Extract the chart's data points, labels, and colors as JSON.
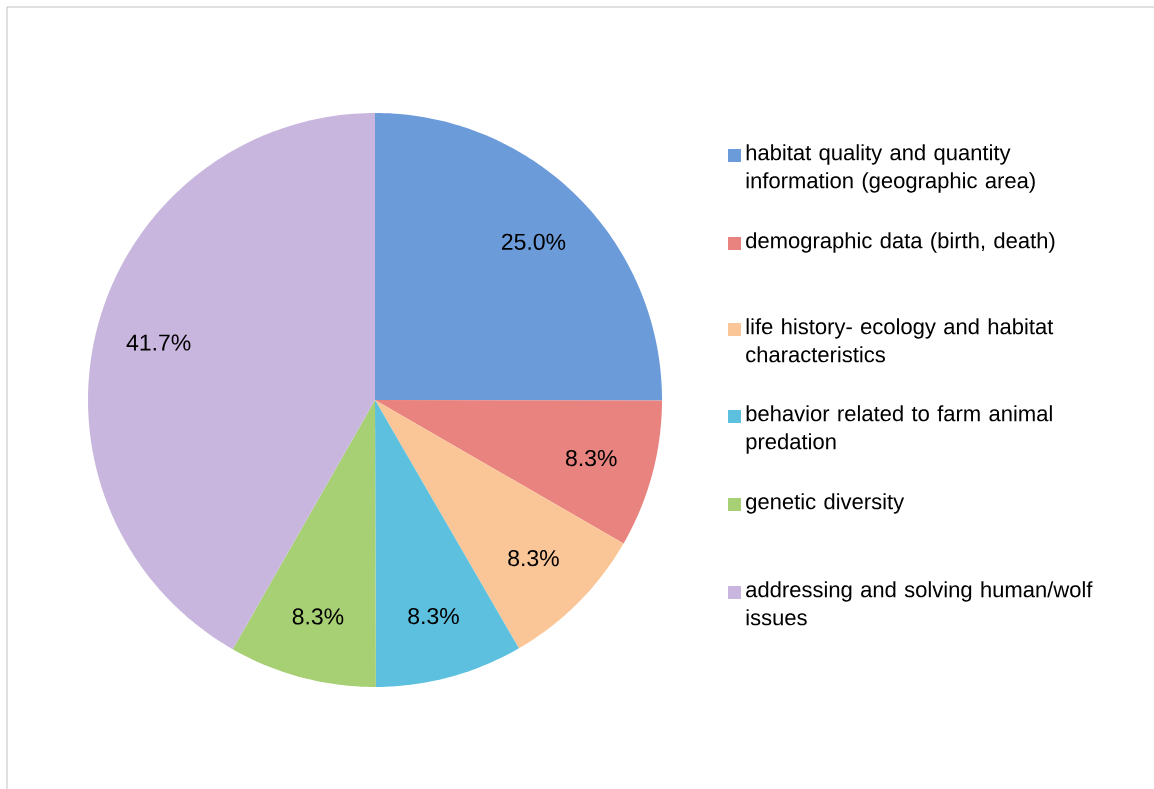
{
  "chart_data": {
    "type": "pie",
    "categories": [
      "habitat quality and quantity information (geographic area)",
      "demographic data (birth, death)",
      "life history- ecology and habitat characteristics",
      "behavior related to farm animal predation",
      "genetic diversity",
      "addressing and solving human/wolf issues"
    ],
    "values": [
      25.0,
      8.3,
      8.3,
      8.3,
      8.3,
      41.7
    ],
    "value_labels": [
      "25.0%",
      "8.3%",
      "8.3%",
      "8.3%",
      "8.3%",
      "41.7%"
    ],
    "colors": [
      "#6b9bd9",
      "#e8837f",
      "#fac698",
      "#5cc0de",
      "#a7cf74",
      "#c9b6de"
    ],
    "legend": "right"
  }
}
